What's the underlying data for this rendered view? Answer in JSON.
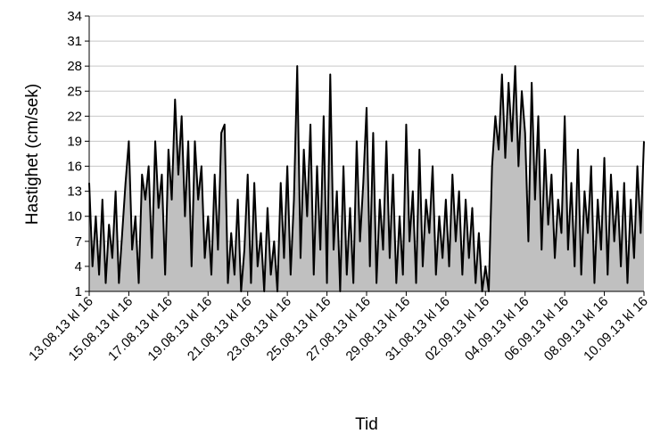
{
  "chart_data": {
    "type": "area",
    "x_label": "Tid",
    "y_label": "Hastighet (cm/sek)",
    "categories": [
      "13.08.13 kl 16",
      null,
      null,
      null,
      null,
      null,
      null,
      null,
      null,
      null,
      null,
      null,
      "15.08.13 kl 16",
      null,
      null,
      null,
      null,
      null,
      null,
      null,
      null,
      null,
      null,
      null,
      "17.08.13 kl 16",
      null,
      null,
      null,
      null,
      null,
      null,
      null,
      null,
      null,
      null,
      null,
      "19.08.13 kl 16",
      null,
      null,
      null,
      null,
      null,
      null,
      null,
      null,
      null,
      null,
      null,
      "21.08.13 kl 16",
      null,
      null,
      null,
      null,
      null,
      null,
      null,
      null,
      null,
      null,
      null,
      "23.08.13 kl 16",
      null,
      null,
      null,
      null,
      null,
      null,
      null,
      null,
      null,
      null,
      null,
      "25.08.13 kl 16",
      null,
      null,
      null,
      null,
      null,
      null,
      null,
      null,
      null,
      null,
      null,
      "27.08.13 kl 16",
      null,
      null,
      null,
      null,
      null,
      null,
      null,
      null,
      null,
      null,
      null,
      "29.08.13 kl 16",
      null,
      null,
      null,
      null,
      null,
      null,
      null,
      null,
      null,
      null,
      null,
      "31.08.13 kl 16",
      null,
      null,
      null,
      null,
      null,
      null,
      null,
      null,
      null,
      null,
      null,
      "02.09.13 kl 16",
      null,
      null,
      null,
      null,
      null,
      null,
      null,
      null,
      null,
      null,
      null,
      "04.09.13 kl 16",
      null,
      null,
      null,
      null,
      null,
      null,
      null,
      null,
      null,
      null,
      null,
      "06.09.13 kl 16",
      null,
      null,
      null,
      null,
      null,
      null,
      null,
      null,
      null,
      null,
      null,
      "08.09.13 kl 16",
      null,
      null,
      null,
      null,
      null,
      null,
      null,
      null,
      null,
      null,
      null,
      "10.09.13 kl 16"
    ],
    "values": [
      14,
      4,
      10,
      3,
      12,
      2,
      9,
      5,
      13,
      2,
      8,
      14,
      19,
      6,
      10,
      2,
      15,
      12,
      16,
      5,
      19,
      11,
      15,
      3,
      18,
      12,
      24,
      15,
      22,
      10,
      19,
      4,
      19,
      12,
      16,
      5,
      10,
      3,
      15,
      6,
      20,
      21,
      2,
      8,
      3,
      12,
      1,
      6,
      15,
      2,
      14,
      4,
      8,
      1,
      11,
      3,
      7,
      1,
      14,
      5,
      16,
      3,
      12,
      28,
      5,
      18,
      10,
      21,
      3,
      16,
      6,
      22,
      2,
      27,
      6,
      13,
      1,
      16,
      3,
      11,
      2,
      19,
      7,
      14,
      23,
      4,
      20,
      2,
      12,
      6,
      19,
      5,
      15,
      2,
      10,
      3,
      21,
      7,
      13,
      2,
      18,
      4,
      12,
      8,
      16,
      3,
      10,
      5,
      12,
      4,
      15,
      7,
      13,
      3,
      12,
      5,
      11,
      2,
      8,
      1,
      4,
      1,
      16,
      22,
      18,
      27,
      17,
      26,
      19,
      28,
      16,
      25,
      20,
      7,
      26,
      12,
      22,
      6,
      18,
      9,
      15,
      5,
      12,
      8,
      22,
      6,
      14,
      4,
      18,
      3,
      13,
      8,
      16,
      2,
      12,
      6,
      17,
      3,
      15,
      7,
      13,
      4,
      14,
      2,
      12,
      5,
      16,
      8,
      19
    ],
    "color": "#c0c0c0",
    "line_color": "#000000",
    "ylim": [
      1,
      34
    ],
    "yticks": [
      1,
      4,
      7,
      10,
      13,
      16,
      19,
      22,
      25,
      28,
      31,
      34
    ],
    "grid": true
  }
}
